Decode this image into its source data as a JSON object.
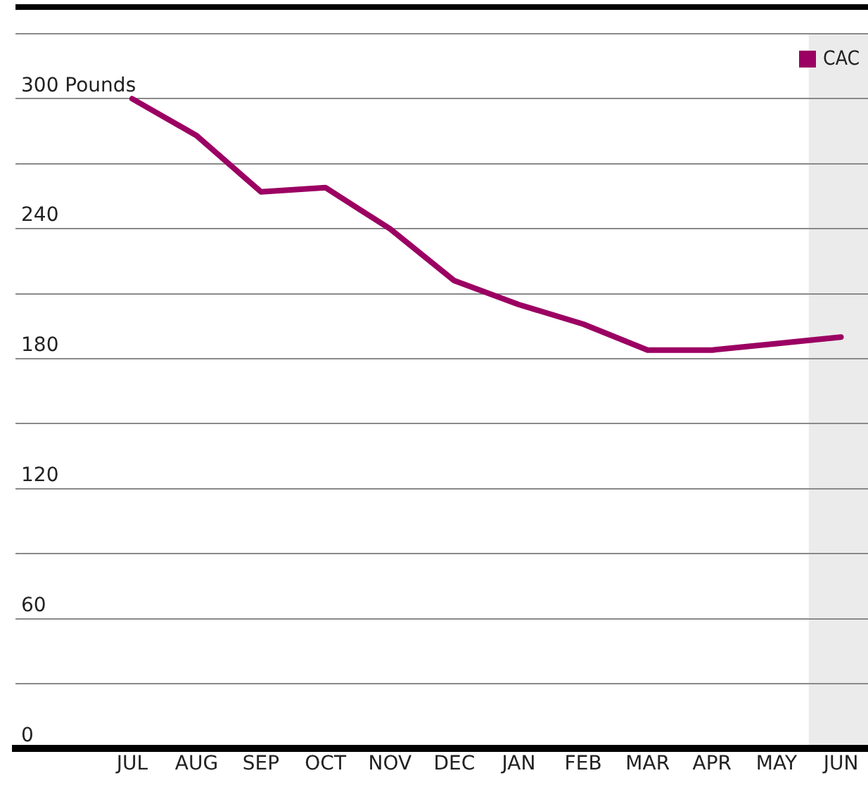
{
  "chart_data": {
    "type": "line",
    "categories": [
      "JUL",
      "AUG",
      "SEP",
      "OCT",
      "NOV",
      "DEC",
      "JAN",
      "FEB",
      "MAR",
      "APR",
      "MAY",
      "JUN"
    ],
    "series": [
      {
        "name": "CAC",
        "color": "#9b0062",
        "values": [
          300,
          283,
          257,
          259,
          240,
          216,
          205,
          196,
          184,
          184,
          187,
          190
        ]
      }
    ],
    "ylim": [
      0,
      330
    ],
    "yticks": [
      0,
      {
        "value": 30,
        "label": null
      },
      60,
      {
        "value": 90,
        "label": null
      },
      120,
      {
        "value": 150,
        "label": null
      },
      180,
      {
        "value": 210,
        "label": null
      },
      240,
      {
        "value": 270,
        "label": null
      },
      {
        "value": 300,
        "label": "300 Pounds"
      },
      {
        "value": 330,
        "label": null
      }
    ],
    "grid": "y",
    "legend": "top right",
    "marker": "none",
    "line_style": "solid",
    "bands": [
      {
        "axis": "x",
        "from": "JUN",
        "to": "JUN",
        "color": "#ebebeb"
      }
    ]
  }
}
